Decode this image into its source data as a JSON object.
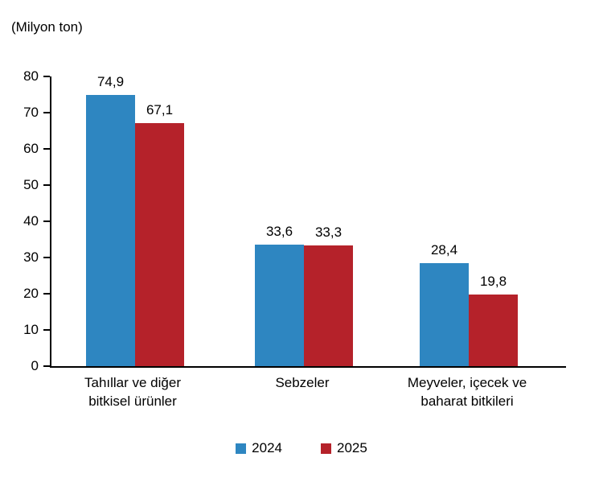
{
  "unit_label": "(Milyon ton)",
  "chart_data": {
    "type": "bar",
    "title": "",
    "unit": "Milyon ton",
    "categories": [
      "Tahıllar ve diğer\nbitkisel ürünler",
      "Sebzeler",
      "Meyveler, içecek ve\nbaharat  bitkileri"
    ],
    "series": [
      {
        "name": "2024",
        "color": "#2E86C1",
        "values": [
          74.9,
          33.6,
          28.4
        ],
        "labels": [
          "74,9",
          "33,6",
          "28,4"
        ]
      },
      {
        "name": "2025",
        "color": "#B5222A",
        "values": [
          67.1,
          33.3,
          19.8
        ],
        "labels": [
          "67,1",
          "33,3",
          "19,8"
        ]
      }
    ],
    "ylim": [
      0,
      80
    ],
    "yticks": [
      0,
      10,
      20,
      30,
      40,
      50,
      60,
      70,
      80
    ],
    "grid": false,
    "legend_position": "bottom"
  }
}
